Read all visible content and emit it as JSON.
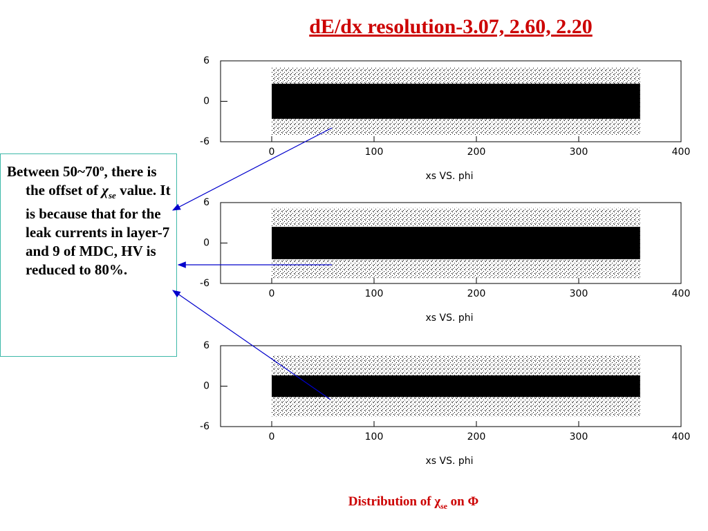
{
  "title": "dE/dx resolution-3.07, 2.60, 2.20",
  "note": [
    "Between 50~70",
    "o",
    ", there is the offset of ",
    "χ",
    "se",
    " value. It is because that for the leak currents in layer-7 and 9 of MDC, HV is reduced to 80%."
  ],
  "caption": [
    "Distribution of ",
    "χ",
    "se",
    " on Φ"
  ],
  "chart_data": [
    {
      "type": "band",
      "xlabel": "xs VS. phi",
      "x": [
        0,
        360
      ],
      "xlim": [
        -50,
        400
      ],
      "xticks": [
        0,
        100,
        200,
        300,
        400
      ],
      "ylim": [
        -6,
        6
      ],
      "yticks": [
        6,
        0,
        -6
      ],
      "series": [
        {
          "color": "#555555",
          "values_low": [
            -5,
            -5
          ],
          "values_high": [
            5,
            5
          ]
        },
        {
          "color": "#000000",
          "values_low": [
            -2.6,
            -2.6
          ],
          "values_high": [
            2.6,
            2.6
          ]
        }
      ]
    },
    {
      "type": "band",
      "xlabel": "xs VS. phi",
      "x": [
        0,
        360
      ],
      "xlim": [
        -50,
        400
      ],
      "xticks": [
        0,
        100,
        200,
        300,
        400
      ],
      "ylim": [
        -6,
        6
      ],
      "yticks": [
        6,
        0,
        -6
      ],
      "series": [
        {
          "color": "#555555",
          "values_low": [
            -5.2,
            -5.2
          ],
          "values_high": [
            5.2,
            5.2
          ]
        },
        {
          "color": "#000000",
          "values_low": [
            -2.4,
            -2.4
          ],
          "values_high": [
            2.4,
            2.4
          ]
        }
      ]
    },
    {
      "type": "band",
      "xlabel": "xs VS. phi",
      "x": [
        0,
        360
      ],
      "xlim": [
        -50,
        400
      ],
      "xticks": [
        0,
        100,
        200,
        300,
        400
      ],
      "ylim": [
        -6,
        6
      ],
      "yticks": [
        6,
        0,
        -6
      ],
      "series": [
        {
          "color": "#555555",
          "values_low": [
            -4.5,
            -4.5
          ],
          "values_high": [
            4.5,
            4.5
          ]
        },
        {
          "color": "#000000",
          "values_low": [
            -1.6,
            -1.6
          ],
          "values_high": [
            1.6,
            1.6
          ]
        }
      ]
    }
  ]
}
